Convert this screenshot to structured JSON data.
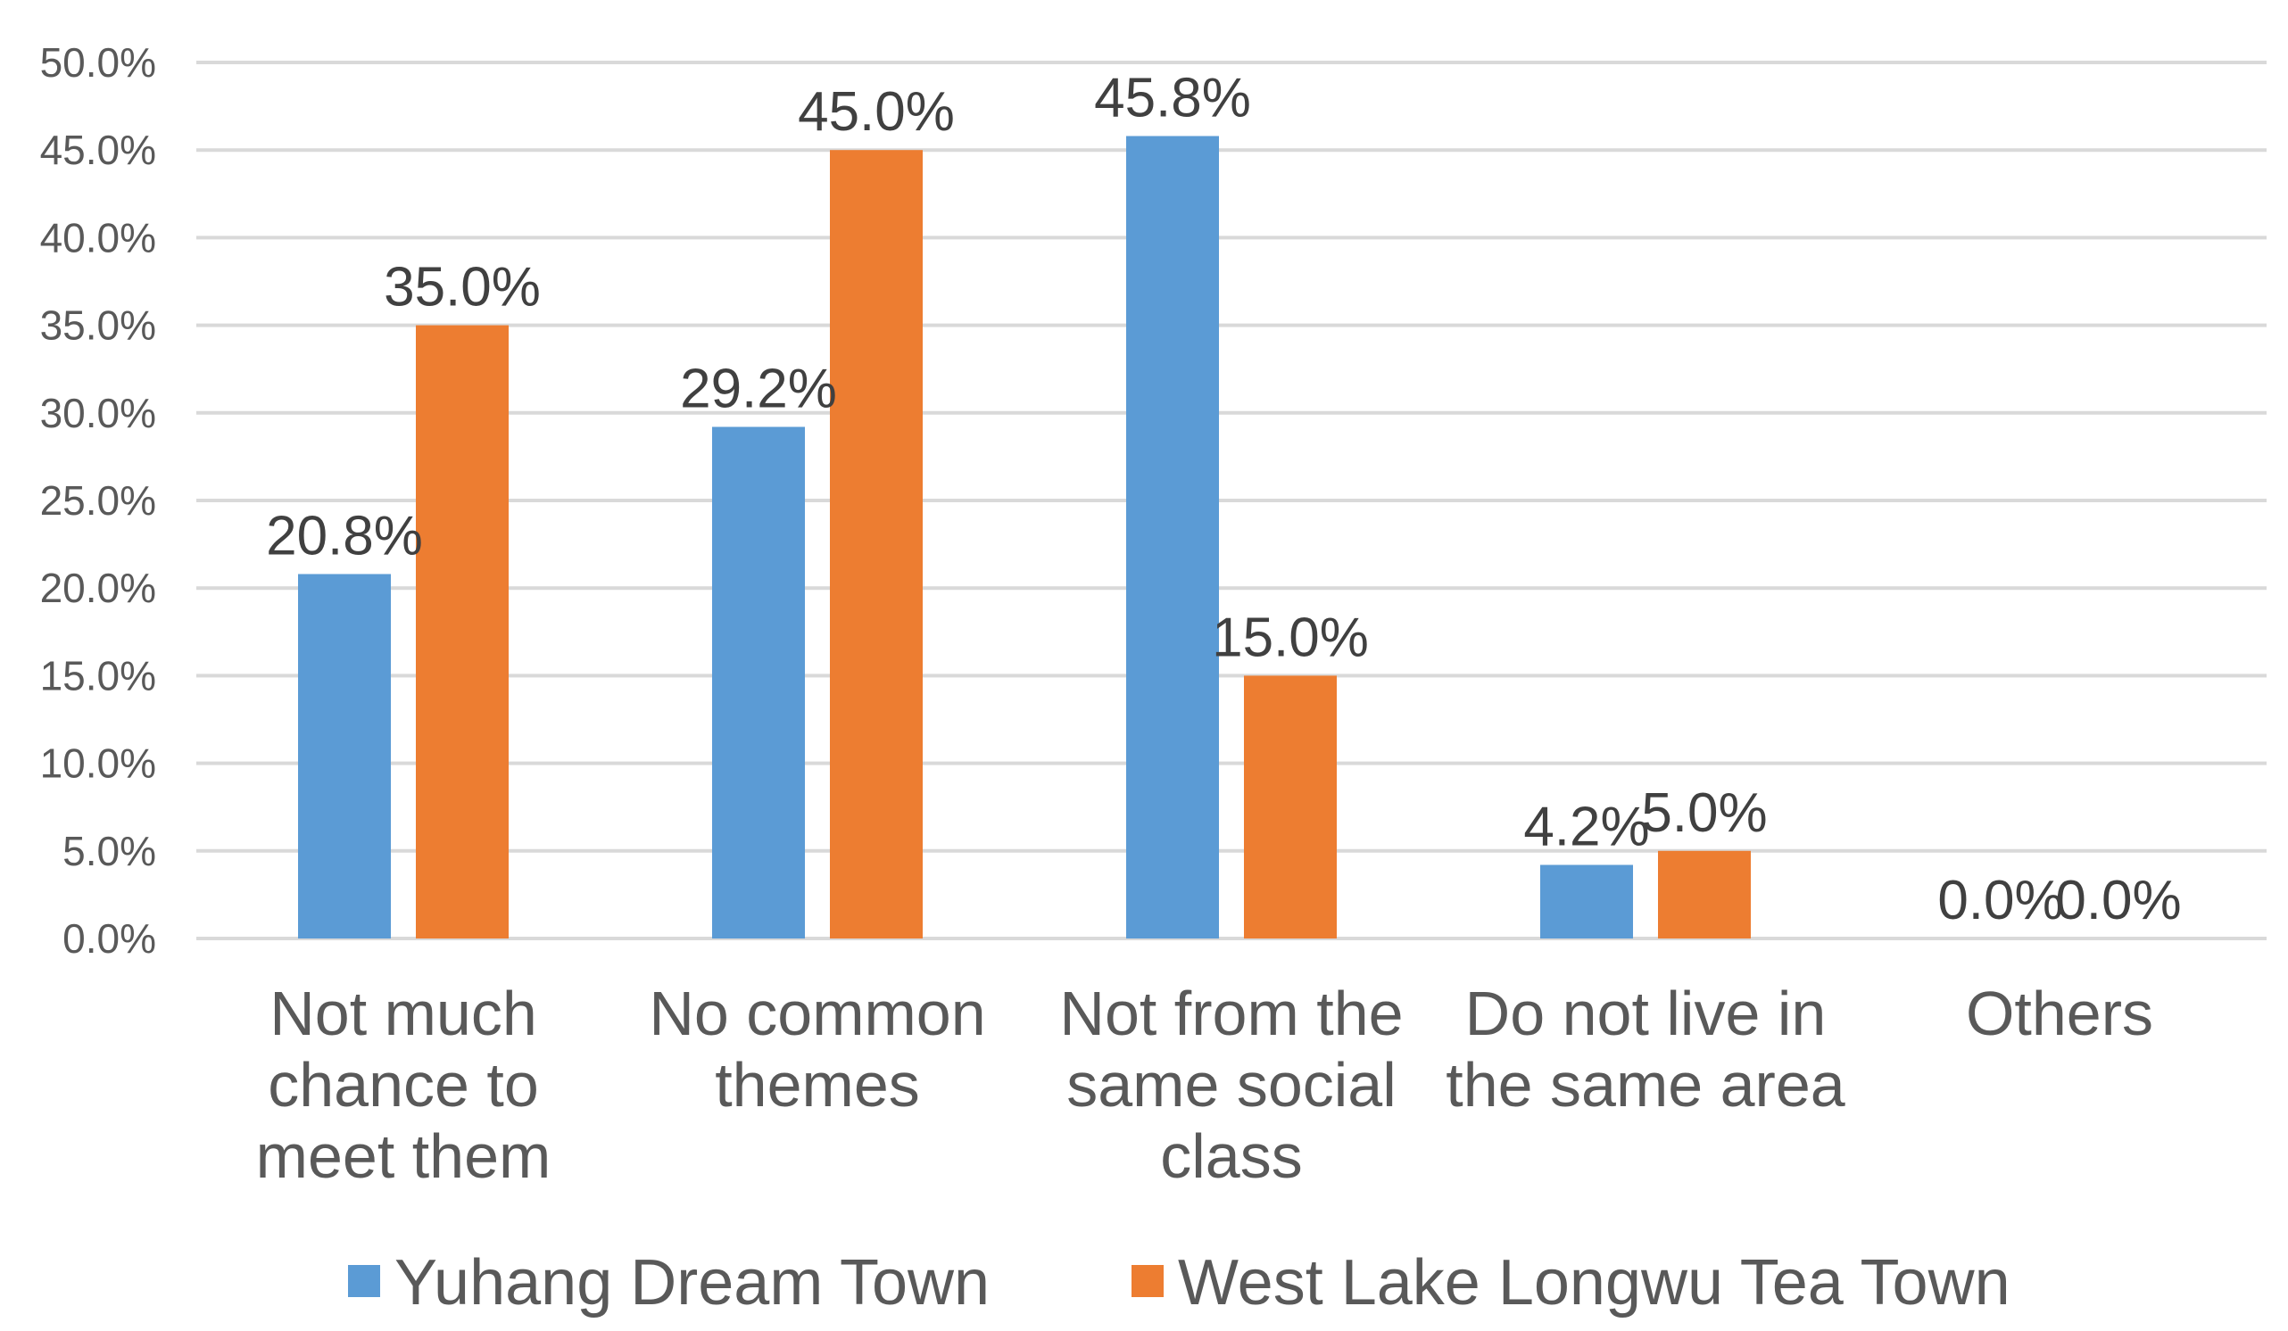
{
  "chart_data": {
    "type": "bar",
    "categories": [
      [
        "Not much",
        "chance to",
        "meet them"
      ],
      [
        "No common",
        "themes"
      ],
      [
        "Not from the",
        "same social",
        "class"
      ],
      [
        "Do not live in",
        "the same area"
      ],
      [
        "Others"
      ]
    ],
    "series": [
      {
        "name": "Yuhang Dream Town",
        "color": "#5b9bd5",
        "values": [
          20.8,
          29.2,
          45.8,
          4.2,
          0.0
        ],
        "labels": [
          "20.8%",
          "29.2%",
          "45.8%",
          "4.2%",
          "0.0%"
        ]
      },
      {
        "name": "West Lake Longwu Tea Town",
        "color": "#ed7d31",
        "values": [
          35.0,
          45.0,
          15.0,
          5.0,
          0.0
        ],
        "labels": [
          "35.0%",
          "45.0%",
          "15.0%",
          "5.0%",
          "0.0%"
        ]
      }
    ],
    "yticks": [
      "0.0%",
      "5.0%",
      "10.0%",
      "15.0%",
      "20.0%",
      "25.0%",
      "30.0%",
      "35.0%",
      "40.0%",
      "45.0%",
      "50.0%"
    ],
    "ylim": [
      0,
      50
    ],
    "grid": true,
    "legend_position": "bottom",
    "title": "",
    "xlabel": "",
    "ylabel": ""
  }
}
